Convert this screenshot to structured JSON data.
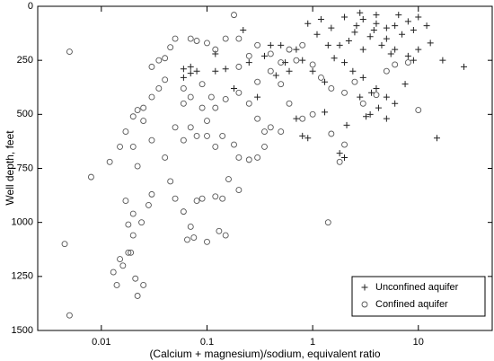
{
  "chart_data": {
    "type": "scatter",
    "xlabel": "(Calcium + magnesium)/sodium, equivalent ratio",
    "ylabel": "Well depth, feet",
    "xscale": "log",
    "xlim": [
      0.0025,
      50
    ],
    "xticks": [
      0.01,
      0.1,
      1,
      10
    ],
    "ylim": [
      0,
      1500
    ],
    "y_inverted": true,
    "yticks": [
      0,
      250,
      500,
      750,
      1000,
      1250,
      1500
    ],
    "legend": "lower right",
    "series": [
      {
        "name": "Unconfined aquifer",
        "marker": "plus",
        "color": "#222222",
        "x": [
          2,
          3,
          4,
          5,
          2.5,
          3.5,
          6,
          8,
          1.5,
          1.2,
          2.2,
          4.5,
          7,
          9,
          10,
          12,
          3,
          5.5,
          1.8,
          2.8,
          4,
          6.5,
          1.1,
          0.9,
          0.7,
          0.5,
          0.35,
          0.25,
          0.15,
          0.12,
          0.06,
          0.07,
          0.08,
          0.06,
          0.18,
          0.3,
          0.45,
          0.6,
          0.8,
          1,
          1.3,
          1.6,
          2,
          2.4,
          3,
          3.6,
          4,
          5,
          6,
          7.5,
          2.8,
          3.2,
          3.5,
          4.2,
          2.1,
          1.8,
          2,
          0.8,
          0.9,
          15,
          17,
          27,
          8,
          10,
          13,
          9,
          1.3,
          5,
          0.7,
          0.07,
          0.22,
          0.12,
          1.4,
          2.6,
          3.8,
          5,
          6,
          0.4,
          0.55
        ],
        "values": [
          50,
          60,
          80,
          100,
          120,
          140,
          90,
          70,
          100,
          60,
          160,
          180,
          130,
          110,
          50,
          90,
          200,
          220,
          180,
          30,
          40,
          40,
          130,
          80,
          200,
          180,
          230,
          260,
          290,
          300,
          290,
          310,
          300,
          330,
          380,
          420,
          320,
          300,
          250,
          300,
          350,
          240,
          260,
          300,
          330,
          400,
          380,
          420,
          450,
          360,
          420,
          510,
          500,
          470,
          550,
          680,
          700,
          600,
          610,
          610,
          250,
          280,
          230,
          200,
          170,
          250,
          490,
          520,
          520,
          280,
          110,
          220,
          180,
          90,
          110,
          150,
          200,
          180,
          260
        ]
      },
      {
        "name": "Confined aquifer",
        "marker": "circle",
        "color": "#555555",
        "x": [
          0.005,
          0.0045,
          0.005,
          0.008,
          0.012,
          0.013,
          0.014,
          0.015,
          0.016,
          0.018,
          0.019,
          0.02,
          0.022,
          0.021,
          0.025,
          0.017,
          0.018,
          0.02,
          0.024,
          0.028,
          0.03,
          0.015,
          0.017,
          0.02,
          0.022,
          0.025,
          0.03,
          0.035,
          0.04,
          0.03,
          0.04,
          0.045,
          0.05,
          0.035,
          0.025,
          0.02,
          0.022,
          0.03,
          0.04,
          0.045,
          0.05,
          0.06,
          0.07,
          0.08,
          0.09,
          0.1,
          0.12,
          0.14,
          0.16,
          0.2,
          0.13,
          0.15,
          0.065,
          0.075,
          0.05,
          0.06,
          0.07,
          0.08,
          0.1,
          0.12,
          0.14,
          0.18,
          0.2,
          0.25,
          0.3,
          0.35,
          0.06,
          0.07,
          0.09,
          0.1,
          0.12,
          0.15,
          0.2,
          0.25,
          0.3,
          0.4,
          0.5,
          0.35,
          0.07,
          0.08,
          0.1,
          0.12,
          0.15,
          0.18,
          0.2,
          0.25,
          0.3,
          0.4,
          0.5,
          0.6,
          0.7,
          0.8,
          1,
          1.2,
          1.5,
          2,
          2.5,
          3,
          4,
          5,
          6,
          8,
          10,
          1,
          1.5,
          2,
          1.8,
          1.4,
          0.6,
          0.8,
          0.5,
          0.4,
          0.3,
          0.2,
          0.06,
          0.09,
          0.11
        ],
        "values": [
          1430,
          1100,
          210,
          790,
          720,
          1230,
          1290,
          1170,
          1200,
          1140,
          1140,
          1060,
          1340,
          1260,
          1290,
          900,
          1010,
          960,
          1000,
          920,
          870,
          650,
          580,
          510,
          480,
          470,
          420,
          380,
          340,
          280,
          240,
          190,
          150,
          250,
          530,
          650,
          740,
          620,
          700,
          810,
          890,
          950,
          1020,
          900,
          890,
          1090,
          880,
          890,
          800,
          850,
          1040,
          1060,
          1080,
          1070,
          560,
          620,
          560,
          600,
          600,
          650,
          600,
          640,
          700,
          710,
          700,
          650,
          450,
          420,
          470,
          530,
          470,
          430,
          400,
          450,
          520,
          560,
          580,
          580,
          150,
          160,
          170,
          200,
          150,
          40,
          150,
          230,
          180,
          220,
          260,
          200,
          250,
          180,
          270,
          330,
          380,
          400,
          350,
          450,
          410,
          300,
          270,
          260,
          480,
          500,
          590,
          640,
          720,
          1000,
          450,
          520,
          360,
          300,
          350,
          280,
          380,
          360,
          420
        ]
      }
    ]
  }
}
